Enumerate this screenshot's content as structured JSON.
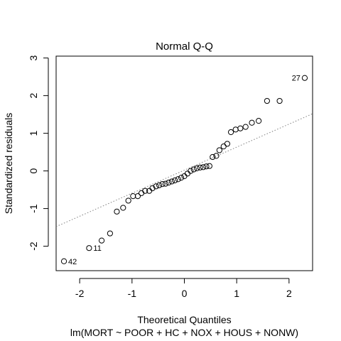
{
  "chart_data": {
    "type": "scatter",
    "title": "Normal Q-Q",
    "xlabel": "Theoretical Quantiles",
    "subtitle": "lm(MORT ~ POOR + HC + NOX + HOUS + NONW)",
    "ylabel": "Standardized residuals",
    "xlim": [
      -2.45,
      2.45
    ],
    "ylim": [
      -2.65,
      3.05
    ],
    "x_ticks": [
      -2,
      -1,
      0,
      1,
      2
    ],
    "y_ticks": [
      -2,
      -1,
      0,
      1,
      2,
      3
    ],
    "x_tick_labels": [
      "-2",
      "-1",
      "0",
      "1",
      "2"
    ],
    "y_tick_labels": [
      "-2",
      "-1",
      "0",
      "1",
      "2",
      "3"
    ],
    "reference_line": {
      "intercept": 0.02,
      "slope": 0.612,
      "style": "dotted",
      "color": "#808080"
    },
    "points": [
      [
        -2.3,
        -2.4
      ],
      [
        -1.82,
        -2.05
      ],
      [
        -1.58,
        -1.85
      ],
      [
        -1.42,
        -1.66
      ],
      [
        -1.29,
        -1.08
      ],
      [
        -1.17,
        -0.98
      ],
      [
        -1.07,
        -0.79
      ],
      [
        -0.98,
        -0.67
      ],
      [
        -0.89,
        -0.67
      ],
      [
        -0.82,
        -0.59
      ],
      [
        -0.75,
        -0.53
      ],
      [
        -0.67,
        -0.53
      ],
      [
        -0.61,
        -0.46
      ],
      [
        -0.54,
        -0.41
      ],
      [
        -0.48,
        -0.38
      ],
      [
        -0.42,
        -0.35
      ],
      [
        -0.36,
        -0.34
      ],
      [
        -0.3,
        -0.31
      ],
      [
        -0.24,
        -0.28
      ],
      [
        -0.18,
        -0.25
      ],
      [
        -0.12,
        -0.22
      ],
      [
        -0.06,
        -0.18
      ],
      [
        0.0,
        -0.14
      ],
      [
        0.06,
        -0.07
      ],
      [
        0.12,
        0.0
      ],
      [
        0.18,
        0.04
      ],
      [
        0.24,
        0.07
      ],
      [
        0.3,
        0.09
      ],
      [
        0.36,
        0.1
      ],
      [
        0.42,
        0.12
      ],
      [
        0.48,
        0.13
      ],
      [
        0.54,
        0.37
      ],
      [
        0.61,
        0.4
      ],
      [
        0.67,
        0.55
      ],
      [
        0.75,
        0.65
      ],
      [
        0.82,
        0.72
      ],
      [
        0.89,
        1.03
      ],
      [
        0.98,
        1.1
      ],
      [
        1.07,
        1.13
      ],
      [
        1.17,
        1.17
      ],
      [
        1.29,
        1.28
      ],
      [
        1.42,
        1.33
      ],
      [
        1.58,
        1.86
      ],
      [
        1.82,
        1.86
      ],
      [
        2.3,
        2.47
      ]
    ],
    "point_labels": [
      {
        "index": 0,
        "text": "42",
        "side": "right"
      },
      {
        "index": 1,
        "text": "11",
        "side": "right"
      },
      {
        "index": 44,
        "text": "27",
        "side": "left"
      }
    ]
  }
}
